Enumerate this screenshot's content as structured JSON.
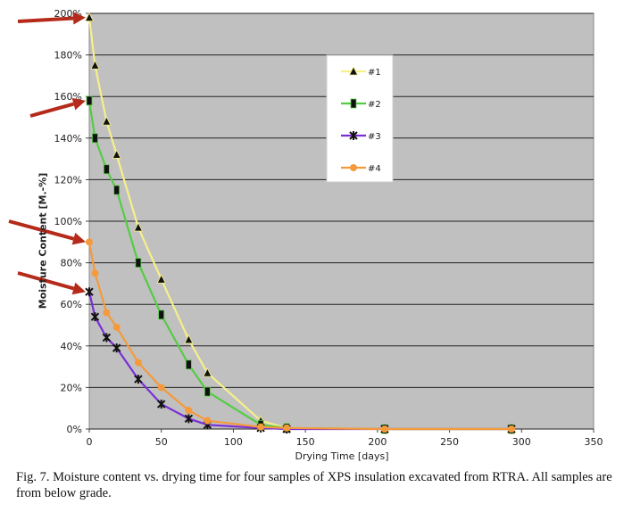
{
  "chart_data": {
    "type": "line",
    "xlabel": "Drying Time [days]",
    "ylabel": "Moisture Content [M.-%]",
    "xlim": [
      0,
      350
    ],
    "ylim": [
      0,
      200
    ],
    "xticks": [
      0,
      50,
      100,
      150,
      200,
      250,
      300,
      350
    ],
    "yticks": [
      0,
      20,
      40,
      60,
      80,
      100,
      120,
      140,
      160,
      180,
      200
    ],
    "yticklabels": [
      "0%",
      "20%",
      "40%",
      "60%",
      "80%",
      "100%",
      "120%",
      "140%",
      "160%",
      "180%",
      "200%"
    ],
    "grid": "horizontal",
    "legend_position": "top-right",
    "background": "#c0c0c0",
    "series": [
      {
        "name": "#1",
        "color": "#f5f08a",
        "marker": "triangle",
        "x": [
          0,
          4,
          12,
          19,
          34,
          50,
          69,
          82,
          119,
          137,
          205,
          293
        ],
        "y": [
          198,
          175,
          148,
          132,
          97,
          72,
          43,
          27,
          4,
          0.5,
          0,
          0
        ]
      },
      {
        "name": "#2",
        "color": "#55cc44",
        "marker": "bar",
        "x": [
          0,
          4,
          12,
          19,
          34,
          50,
          69,
          82,
          119,
          137,
          205,
          293
        ],
        "y": [
          158,
          140,
          125,
          115,
          80,
          55,
          31,
          18,
          2,
          0.5,
          0,
          0
        ]
      },
      {
        "name": "#3",
        "color": "#7a2fd6",
        "marker": "star",
        "x": [
          0,
          4,
          12,
          19,
          34,
          50,
          69,
          82,
          119,
          137,
          205,
          293
        ],
        "y": [
          66,
          54,
          44,
          39,
          24,
          12,
          5,
          2,
          0.5,
          0,
          0,
          0
        ]
      },
      {
        "name": "#4",
        "color": "#f59a3c",
        "marker": "circle",
        "x": [
          0,
          4,
          12,
          19,
          34,
          50,
          69,
          82,
          119,
          137,
          205,
          293
        ],
        "y": [
          90,
          75,
          56,
          49,
          32,
          20,
          9,
          4,
          1,
          0.5,
          0,
          0
        ]
      }
    ],
    "arrow_color": "#b52a1a",
    "arrows_point_at_y": [
      198,
      158,
      90,
      66
    ]
  },
  "caption": "Fig. 7. Moisture content vs. drying time for four samples of XPS insulation excavated from RTRA.  All samples are from below grade."
}
